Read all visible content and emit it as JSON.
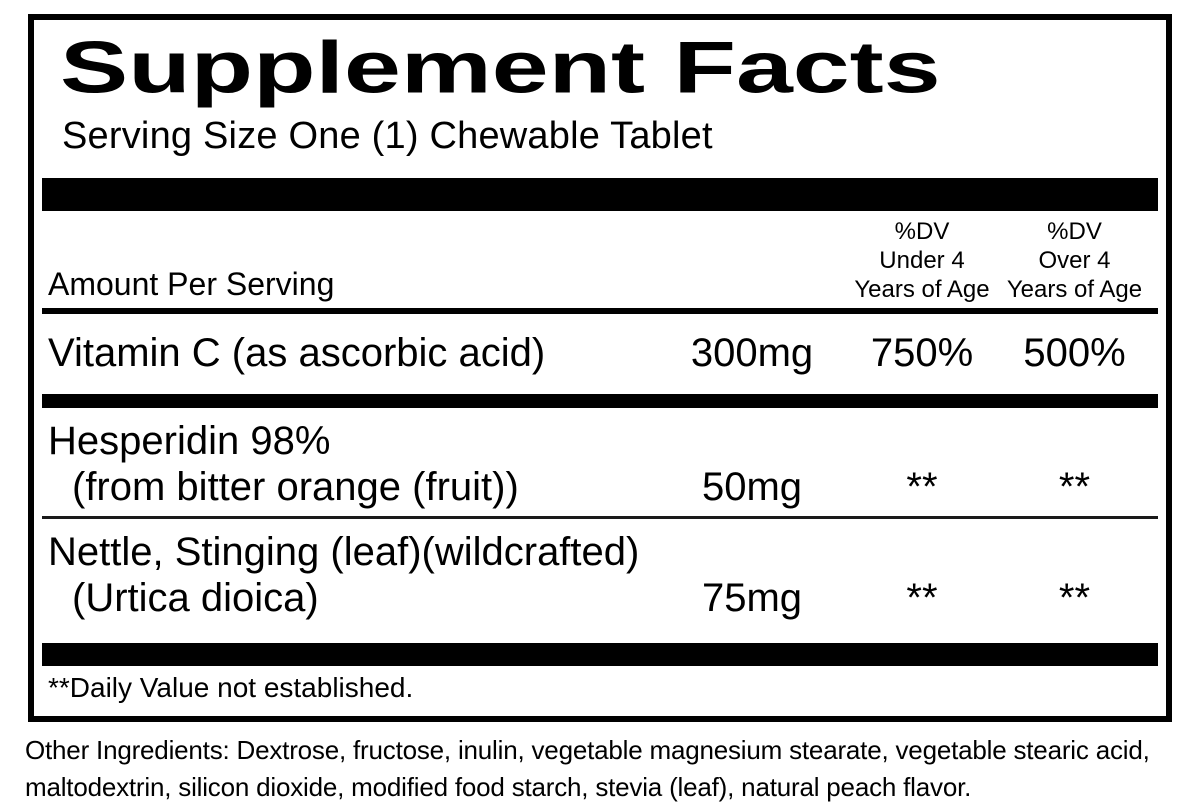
{
  "label": {
    "title": "Supplement Facts",
    "serving_size": "Serving Size One (1) Chewable Tablet",
    "amount_header": "Amount Per Serving",
    "columns": [
      {
        "lines": [
          "%DV",
          "Under 4",
          "Years of Age"
        ]
      },
      {
        "lines": [
          "%DV",
          "Over 4",
          "Years of Age"
        ]
      }
    ],
    "rows": [
      {
        "name_line1": "Vitamin C (as ascorbic acid)",
        "amount": "300mg",
        "dv_under4": "750%",
        "dv_over4": "500%"
      },
      {
        "name_line1": "Hesperidin 98%",
        "name_line2": "(from bitter orange (fruit))",
        "amount": "50mg",
        "dv_under4": "**",
        "dv_over4": "**"
      },
      {
        "name_line1": "Nettle, Stinging (leaf)(wildcrafted)",
        "name_line2": "(Urtica dioica)",
        "amount": "75mg",
        "dv_under4": "**",
        "dv_over4": "**"
      }
    ],
    "footnote": "**Daily Value not established.",
    "other_ingredients": "Other Ingredients: Dextrose, fructose, inulin, vegetable magnesium stearate, vegetable stearic acid, maltodextrin, silicon dioxide, modified food starch, stevia (leaf), natural peach flavor."
  },
  "colors": {
    "ink": "#000000",
    "background": "#ffffff"
  }
}
